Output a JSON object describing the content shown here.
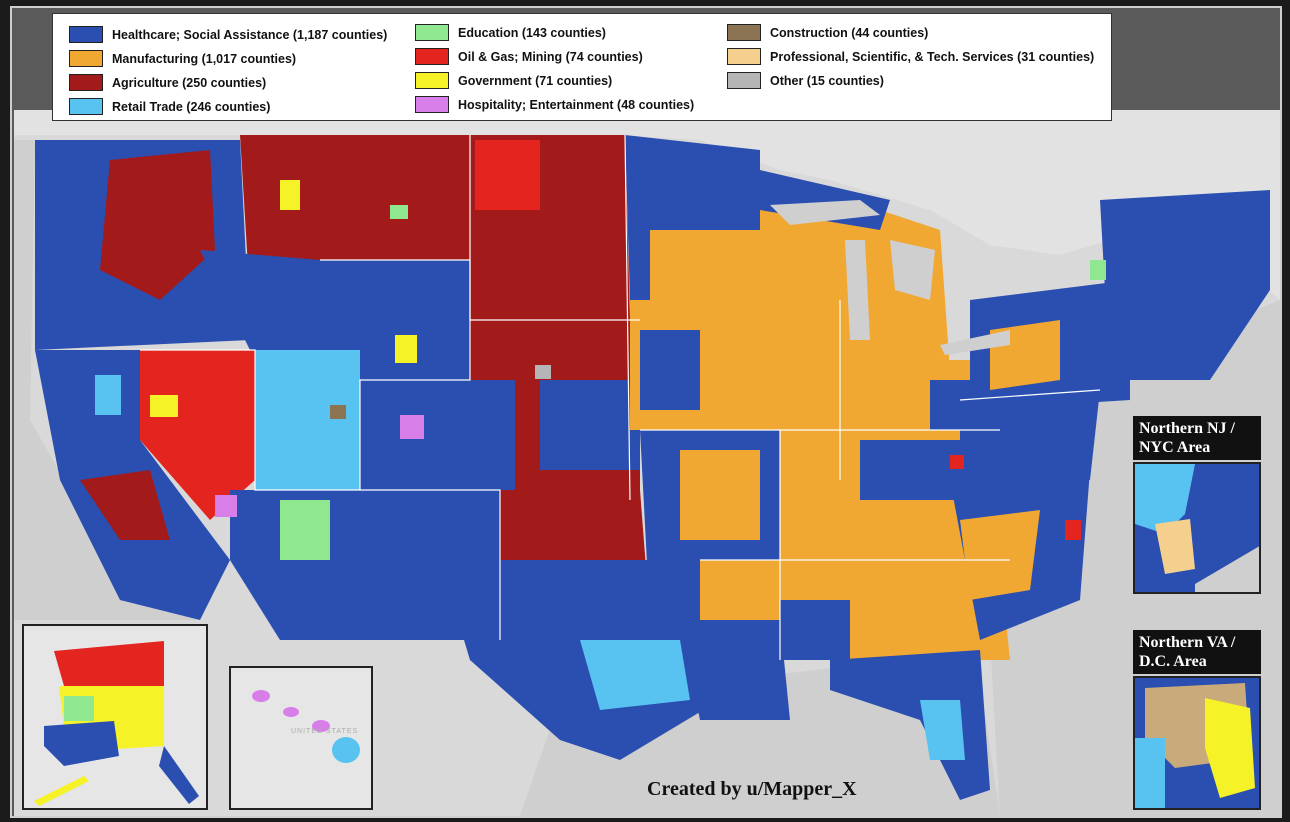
{
  "legend": {
    "items": [
      {
        "label": "Healthcare; Social Assistance (1,187 counties)",
        "color": "#2a4fb0"
      },
      {
        "label": "Manufacturing (1,017 counties)",
        "color": "#f0a832"
      },
      {
        "label": "Agriculture (250 counties)",
        "color": "#a31a1a"
      },
      {
        "label": "Retail Trade (246 counties)",
        "color": "#58c3f0"
      },
      {
        "label": "Education (143 counties)",
        "color": "#8fe88f"
      },
      {
        "label": "Oil & Gas; Mining (74 counties)",
        "color": "#e3241f"
      },
      {
        "label": "Government (71 counties)",
        "color": "#f5f228"
      },
      {
        "label": "Hospitality; Entertainment (48 counties)",
        "color": "#d77ee8"
      },
      {
        "label": "Construction (44 counties)",
        "color": "#8b7454"
      },
      {
        "label": "Professional, Scientific, & Tech. Services (31 counties)",
        "color": "#f5cf8e"
      },
      {
        "label": "Other (15 counties)",
        "color": "#b5b5b5"
      }
    ]
  },
  "insets": {
    "nyc_label": "Northern NJ /\nNYC Area",
    "dc_label": "Northern VA /\nD.C. Area",
    "hawaii_watermark": "UNITED STATES"
  },
  "credit": "Created by u/Mapper_X",
  "colors": {
    "healthcare": "#2a4fb0",
    "manufacturing": "#f0a832",
    "agriculture": "#a31a1a",
    "retail": "#58c3f0",
    "education": "#8fe88f",
    "oilgas": "#e3241f",
    "government": "#f5f228",
    "hospitality": "#d77ee8",
    "construction": "#8b7454",
    "profsci": "#f5cf8e",
    "other": "#b5b5b5",
    "land_base": "#d9d9d9",
    "frame": "#5a5a5a"
  }
}
